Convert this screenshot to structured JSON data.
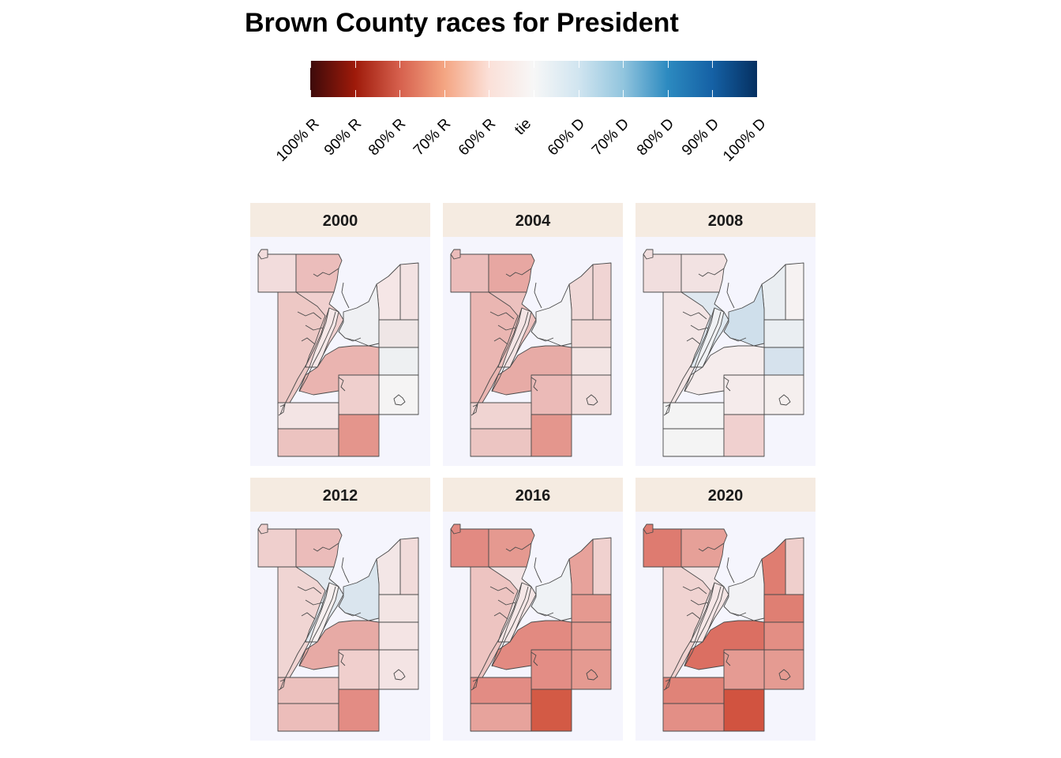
{
  "title": "Brown County races for President",
  "legend": {
    "labels": [
      "100% R",
      "90% R",
      "80% R",
      "70% R",
      "60% R",
      "tie",
      "60% D",
      "70% D",
      "80% D",
      "90% D",
      "100% D"
    ],
    "gradient_colors": [
      "#3d0a0a",
      "#9e1a0a",
      "#d6604d",
      "#f4a582",
      "#fbe0d8",
      "#f7f7f7",
      "#d1e5f0",
      "#92c5de",
      "#2c8ac0",
      "#1561a5",
      "#053061"
    ]
  },
  "panels": [
    {
      "year": "2000",
      "fills": {
        "nw": "#f2dcdc",
        "n": "#ebbdbb",
        "ne_strip": "#f3e2e2",
        "ne2": "#f5e6e6",
        "w": "#edc8c5",
        "cw": "#f0d0cf",
        "c": "#eff0f3",
        "e1": "#efe6e6",
        "e2": "#eef0f2",
        "e3": "#f5f4f4",
        "cs": "#eab4b0",
        "cse": "#efcfcd",
        "swn": "#f3e4e4",
        "sw": "#ecc3c0",
        "se": "#e4958c",
        "riv": "#f6e8e8"
      }
    },
    {
      "year": "2004",
      "fills": {
        "nw": "#ebbcba",
        "n": "#e7a7a2",
        "ne_strip": "#f0d4d3",
        "ne2": "#f0d8d7",
        "w": "#eab6b2",
        "cw": "#ecc1be",
        "c": "#f3f3f6",
        "e1": "#f0d8d6",
        "e2": "#f3e5e4",
        "e3": "#f2dedd",
        "cs": "#e7aba6",
        "cse": "#ebbab7",
        "swn": "#f0d4d2",
        "sw": "#ecc5c2",
        "se": "#e4968d",
        "riv": "#f4e4e4"
      }
    },
    {
      "year": "2008",
      "fills": {
        "nw": "#f1dede",
        "n": "#f2e2e2",
        "ne_strip": "#f6f2f2",
        "ne2": "#eaeef2",
        "w": "#f3e5e5",
        "cw": "#dfe8f0",
        "c": "#cfdfeb",
        "e1": "#eaeef2",
        "e2": "#d6e2ed",
        "e3": "#f5efee",
        "cs": "#f5ecec",
        "cse": "#f5ebeb",
        "swn": "#f4f4f4",
        "sw": "#f4f4f4",
        "se": "#f0d0cf",
        "riv": "#eff1f4"
      }
    },
    {
      "year": "2012",
      "fills": {
        "nw": "#efcfcd",
        "n": "#ebbcba",
        "ne_strip": "#f1dbda",
        "ne2": "#f3e6e6",
        "w": "#f0d5d3",
        "cw": "#e2e9f0",
        "c": "#dae5ee",
        "e1": "#f3e5e4",
        "e2": "#f4e4e4",
        "e3": "#f4e4e4",
        "cs": "#e7aaa5",
        "cse": "#f0cfcd",
        "swn": "#ecc1be",
        "sw": "#ecbdba",
        "se": "#e38c84",
        "riv": "#f6efef"
      }
    },
    {
      "year": "2016",
      "fills": {
        "nw": "#e28a82",
        "n": "#e59990",
        "ne_strip": "#f0d1cf",
        "ne2": "#e7a29b",
        "w": "#edc4c1",
        "cw": "#f3e4e4",
        "c": "#eff2f5",
        "e1": "#e59990",
        "e2": "#e59a91",
        "e3": "#e59a91",
        "cs": "#e28a81",
        "cse": "#e38d85",
        "swn": "#e28c84",
        "sw": "#e7a39c",
        "se": "#d35a45",
        "riv": "#f5e7e7"
      }
    },
    {
      "year": "2020",
      "fills": {
        "nw": "#de7b70",
        "n": "#e6a098",
        "ne_strip": "#efcfcc",
        "ne2": "#df7d71",
        "w": "#f0d3d1",
        "cw": "#f3e4e4",
        "c": "#f2f2f5",
        "e1": "#df7f73",
        "e2": "#e38e84",
        "e3": "#e59b92",
        "cs": "#db6f62",
        "cse": "#e59b93",
        "swn": "#e08378",
        "sw": "#e38f86",
        "se": "#d15340",
        "riv": "#f5e6e6"
      }
    }
  ]
}
